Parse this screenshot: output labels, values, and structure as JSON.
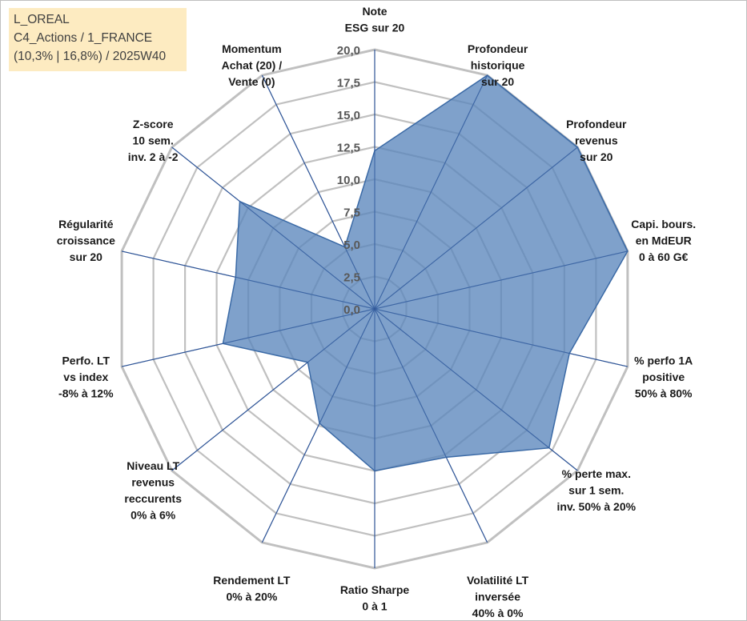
{
  "info_box": {
    "line1": "L_OREAL",
    "line2": "C4_Actions / 1_FRANCE",
    "line3": "(10,3% | 16,8%) / 2025W40"
  },
  "colors": {
    "grid": "#c0c0c0",
    "spoke": "#2f5597",
    "fill": "#5b87bd",
    "edge": "#3b6aa6",
    "info_bg": "#fdebc1"
  },
  "chart_data": {
    "type": "radar",
    "title": "",
    "range": [
      0,
      20
    ],
    "grid_step": 2.5,
    "tick_labels": [
      "0,0",
      "2,5",
      "5,0",
      "7,5",
      "10,0",
      "12,5",
      "15,0",
      "17,5",
      "20,0"
    ],
    "axes": [
      {
        "label": [
          "Note",
          "ESG sur 20"
        ]
      },
      {
        "label": [
          "Profondeur",
          "historique",
          "sur 20"
        ]
      },
      {
        "label": [
          "Profondeur",
          "revenus",
          "sur 20"
        ]
      },
      {
        "label": [
          "Capi. bours.",
          "en MdEUR",
          "0 à 60 G€"
        ]
      },
      {
        "label": [
          "% perfo 1A",
          "positive",
          "50% à 80%"
        ]
      },
      {
        "label": [
          "% perte max.",
          "sur 1 sem.",
          "inv. 50% à 20%"
        ]
      },
      {
        "label": [
          "Volatilité LT",
          "inversée",
          "40% à 0%"
        ]
      },
      {
        "label": [
          "Ratio Sharpe",
          "0 à 1"
        ]
      },
      {
        "label": [
          "Rendement LT",
          "0% à 20%"
        ]
      },
      {
        "label": [
          "Niveau LT",
          "revenus",
          "reccurents",
          "0% à 6%"
        ]
      },
      {
        "label": [
          "Perfo. LT",
          "vs index",
          "-8% à 12%"
        ]
      },
      {
        "label": [
          "Régularité",
          "croissance",
          "sur 20"
        ]
      },
      {
        "label": [
          "Z-score",
          "10 sem.",
          "inv. 2 à -2"
        ]
      },
      {
        "label": [
          "Momentum",
          "Achat (20) /",
          "Vente (0)"
        ]
      }
    ],
    "series": [
      {
        "name": "L_OREAL",
        "values": [
          12.2,
          20,
          20,
          20,
          15.4,
          17.2,
          12.7,
          12.5,
          9.8,
          6.6,
          12.0,
          11.0,
          13.3,
          5.3
        ]
      }
    ]
  }
}
